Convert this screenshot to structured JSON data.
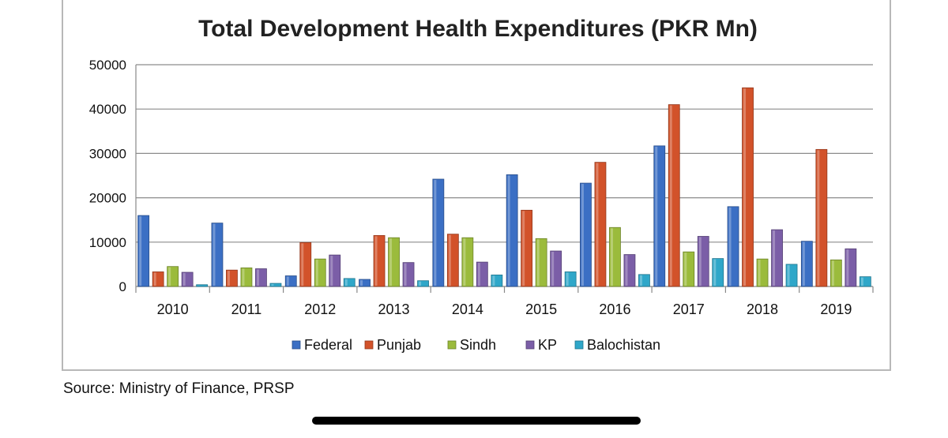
{
  "chart_data": {
    "type": "bar",
    "title": "Total Development Health Expenditures (PKR Mn)",
    "categories": [
      "2010",
      "2011",
      "2012",
      "2013",
      "2014",
      "2015",
      "2016",
      "2017",
      "2018",
      "2019"
    ],
    "series": [
      {
        "name": "Federal",
        "color": "#3b6fc4",
        "values": [
          16000,
          14300,
          2400,
          1600,
          24200,
          25200,
          23300,
          31700,
          18000,
          10200
        ]
      },
      {
        "name": "Punjab",
        "color": "#d2522a",
        "values": [
          3300,
          3700,
          9900,
          11500,
          11800,
          17200,
          28000,
          41000,
          44800,
          30900
        ]
      },
      {
        "name": "Sindh",
        "color": "#9bbb3c",
        "values": [
          4500,
          4200,
          6200,
          11000,
          11000,
          10800,
          13300,
          7800,
          6200,
          6000
        ]
      },
      {
        "name": "KP",
        "color": "#7b5ea7",
        "values": [
          3200,
          4000,
          7100,
          5400,
          5500,
          8000,
          7200,
          11300,
          12800,
          8500
        ]
      },
      {
        "name": "Balochistan",
        "color": "#2fa7c9",
        "values": [
          400,
          700,
          1800,
          1300,
          2600,
          3300,
          2700,
          6300,
          5000,
          2200
        ]
      }
    ],
    "ylim": [
      0,
      50000
    ],
    "yticks": [
      "0",
      "10000",
      "20000",
      "30000",
      "40000",
      "50000"
    ],
    "grid": true,
    "legend": "bottom"
  },
  "source": "Source: Ministry of Finance, PRSP"
}
